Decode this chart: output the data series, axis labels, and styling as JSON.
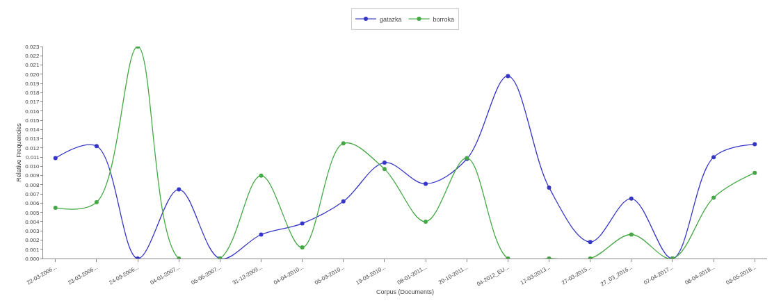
{
  "chart_data": {
    "type": "line",
    "xlabel": "Corpus (Documents)",
    "ylabel": "Relative Frequencies",
    "categories": [
      "22-03-2006...",
      "23-03-2006...",
      "24-09-2006...",
      "04-01-2007...",
      "05-06-2007...",
      "31-12-2009...",
      "04-04-2010...",
      "05-09-2010...",
      "19-09-2010...",
      "08-01-2011...",
      "20-10-2011...",
      "04-2012_EU...",
      "17-03-2013...",
      "27-03-2015...",
      "27_03_2016...",
      "07-04-2017...",
      "08-04-2018...",
      "03-05-2018..."
    ],
    "series": [
      {
        "name": "gatazka",
        "color": "#3535c8",
        "values": [
          0.0109,
          0.0122,
          0,
          0.0075,
          0,
          0.0026,
          0.0038,
          0.0062,
          0.0104,
          0.0081,
          0.0108,
          0.0198,
          0.0077,
          0.0018,
          0.0065,
          0,
          0.011,
          0.0124
        ]
      },
      {
        "name": "borroka",
        "color": "#45a845",
        "values": [
          0.0055,
          0.0061,
          0.023,
          0,
          0,
          0.009,
          0.0012,
          0.0125,
          0.0097,
          0.004,
          0.0109,
          0,
          0,
          0,
          0.0026,
          0,
          0.0066,
          0.0093
        ]
      }
    ],
    "ylim": [
      0,
      0.023
    ],
    "yticks": [
      {
        "value": 0,
        "label": "0.000"
      },
      {
        "value": 0.001,
        "label": "0.001"
      },
      {
        "value": 0.002,
        "label": "0.002"
      },
      {
        "value": 0.003,
        "label": "0.003"
      },
      {
        "value": 0.004,
        "label": "0.004"
      },
      {
        "value": 0.005,
        "label": "0.005"
      },
      {
        "value": 0.006,
        "label": "0.006"
      },
      {
        "value": 0.007,
        "label": "0.007"
      },
      {
        "value": 0.008,
        "label": "0.008"
      },
      {
        "value": 0.009,
        "label": "0.009"
      },
      {
        "value": 0.01,
        "label": "0.010"
      },
      {
        "value": 0.011,
        "label": "0.011"
      },
      {
        "value": 0.012,
        "label": "0.012"
      },
      {
        "value": 0.013,
        "label": "0.013"
      },
      {
        "value": 0.014,
        "label": "0.014"
      },
      {
        "value": 0.015,
        "label": "0.015"
      },
      {
        "value": 0.016,
        "label": "0.016"
      },
      {
        "value": 0.017,
        "label": "0.017"
      },
      {
        "value": 0.018,
        "label": "0.018"
      },
      {
        "value": 0.019,
        "label": "0.019"
      },
      {
        "value": 0.02,
        "label": "0.020"
      },
      {
        "value": 0.021,
        "label": "0.021"
      },
      {
        "value": 0.022,
        "label": "0.022"
      },
      {
        "value": 0.023,
        "label": "0.023"
      }
    ],
    "legend": "top",
    "marker": "circle",
    "line_style": "solid"
  }
}
